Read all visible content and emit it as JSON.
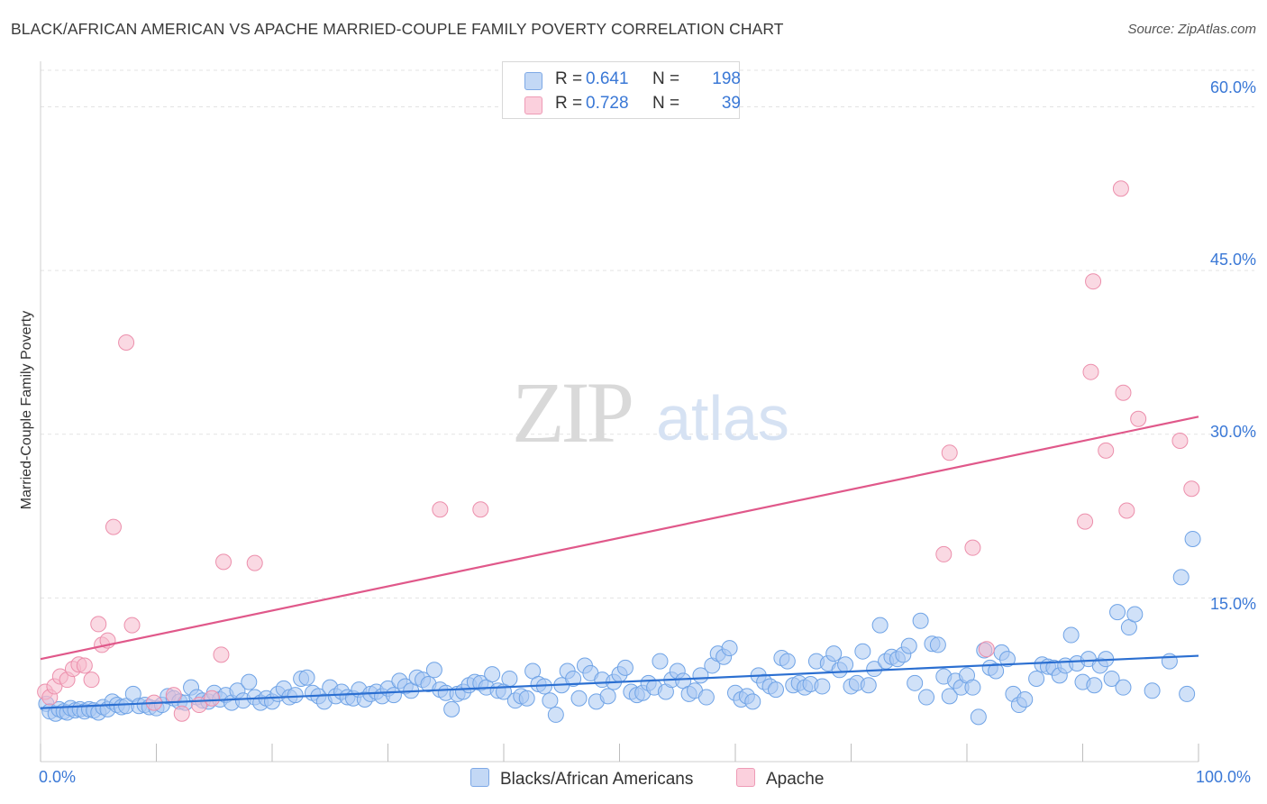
{
  "title": "BLACK/AFRICAN AMERICAN VS APACHE MARRIED-COUPLE FAMILY POVERTY CORRELATION CHART",
  "source": "Source: ZipAtlas.com",
  "watermark": {
    "zip": "ZIP",
    "atlas": "atlas"
  },
  "legend": {
    "rows": [
      {
        "r_label": "R =",
        "r_value": "0.641",
        "n_label": "N =",
        "n_value": "198",
        "color": "#a9c8f2"
      },
      {
        "r_label": "R =",
        "r_value": "0.728",
        "n_label": "N =",
        "n_value": "39",
        "color": "#f6b9cc"
      }
    ]
  },
  "bottom_legend": [
    {
      "label": "Blacks/African Americans",
      "color": "#a9c8f2"
    },
    {
      "label": "Apache",
      "color": "#f6b9cc"
    }
  ],
  "chart_data": {
    "type": "scatter",
    "xlabel": "",
    "ylabel": "Married-Couple Family Poverty",
    "xlim": [
      0,
      100
    ],
    "ylim": [
      0,
      64
    ],
    "x_tick_labels": [
      "0.0%",
      "100.0%"
    ],
    "y_ticks": [
      15,
      30,
      45,
      60
    ],
    "y_tick_labels": [
      "15.0%",
      "30.0%",
      "45.0%",
      "60.0%"
    ],
    "grid": true,
    "series": [
      {
        "name": "Blacks/African Americans",
        "color": "#6fa3e6",
        "fill": "#a9c8f2",
        "line_color": "#2b6fd1",
        "trend": [
          [
            0,
            4.9
          ],
          [
            100,
            9.7
          ]
        ],
        "points": [
          [
            0.5,
            5.3
          ],
          [
            0.8,
            4.6
          ],
          [
            1.3,
            4.4
          ],
          [
            1.6,
            4.8
          ],
          [
            2.0,
            4.6
          ],
          [
            2.3,
            4.5
          ],
          [
            2.6,
            4.9
          ],
          [
            3.0,
            4.7
          ],
          [
            3.4,
            4.8
          ],
          [
            3.8,
            4.6
          ],
          [
            4.2,
            4.8
          ],
          [
            4.6,
            4.7
          ],
          [
            5.0,
            4.5
          ],
          [
            5.4,
            5.0
          ],
          [
            5.8,
            4.8
          ],
          [
            6.2,
            5.5
          ],
          [
            6.6,
            5.2
          ],
          [
            7.0,
            5.0
          ],
          [
            7.4,
            5.1
          ],
          [
            8.0,
            6.2
          ],
          [
            8.5,
            5.1
          ],
          [
            9.0,
            5.2
          ],
          [
            9.4,
            5.0
          ],
          [
            10.0,
            4.9
          ],
          [
            10.5,
            5.2
          ],
          [
            11.0,
            6.0
          ],
          [
            11.5,
            5.8
          ],
          [
            12.0,
            5.5
          ],
          [
            12.5,
            5.4
          ],
          [
            13.0,
            6.8
          ],
          [
            13.5,
            5.9
          ],
          [
            14.0,
            5.6
          ],
          [
            14.5,
            5.5
          ],
          [
            15.0,
            6.3
          ],
          [
            15.5,
            5.7
          ],
          [
            16.0,
            6.1
          ],
          [
            16.5,
            5.4
          ],
          [
            17.0,
            6.5
          ],
          [
            17.5,
            5.6
          ],
          [
            18.0,
            7.3
          ],
          [
            18.5,
            5.9
          ],
          [
            19.0,
            5.4
          ],
          [
            19.5,
            5.8
          ],
          [
            20.0,
            5.5
          ],
          [
            20.5,
            6.2
          ],
          [
            21.0,
            6.7
          ],
          [
            21.5,
            5.9
          ],
          [
            22.0,
            6.1
          ],
          [
            22.5,
            7.6
          ],
          [
            23.0,
            7.7
          ],
          [
            23.5,
            6.3
          ],
          [
            24.0,
            6.0
          ],
          [
            24.5,
            5.5
          ],
          [
            25.0,
            6.8
          ],
          [
            25.5,
            6.0
          ],
          [
            26.0,
            6.4
          ],
          [
            26.5,
            5.9
          ],
          [
            27.0,
            5.8
          ],
          [
            27.5,
            6.6
          ],
          [
            28.0,
            5.7
          ],
          [
            28.5,
            6.2
          ],
          [
            29.0,
            6.4
          ],
          [
            29.5,
            6.0
          ],
          [
            30.0,
            6.7
          ],
          [
            30.5,
            6.1
          ],
          [
            31.0,
            7.4
          ],
          [
            31.5,
            6.9
          ],
          [
            32.0,
            6.5
          ],
          [
            32.5,
            7.7
          ],
          [
            33.0,
            7.5
          ],
          [
            33.5,
            7.1
          ],
          [
            34.0,
            8.4
          ],
          [
            34.5,
            6.6
          ],
          [
            35.0,
            6.3
          ],
          [
            35.5,
            4.8
          ],
          [
            36.0,
            6.2
          ],
          [
            36.5,
            6.4
          ],
          [
            37.0,
            7.0
          ],
          [
            37.5,
            7.3
          ],
          [
            38.0,
            7.2
          ],
          [
            38.5,
            6.8
          ],
          [
            39.0,
            8.0
          ],
          [
            39.5,
            6.5
          ],
          [
            40.0,
            6.4
          ],
          [
            40.5,
            7.6
          ],
          [
            41.0,
            5.6
          ],
          [
            41.5,
            6.0
          ],
          [
            42.0,
            5.8
          ],
          [
            42.5,
            8.3
          ],
          [
            43.0,
            7.1
          ],
          [
            43.5,
            6.9
          ],
          [
            44.0,
            5.6
          ],
          [
            44.5,
            4.3
          ],
          [
            45.0,
            7.0
          ],
          [
            45.5,
            8.3
          ],
          [
            46.0,
            7.6
          ],
          [
            46.5,
            5.8
          ],
          [
            47.0,
            8.8
          ],
          [
            47.5,
            8.1
          ],
          [
            48.0,
            5.5
          ],
          [
            48.5,
            7.5
          ],
          [
            49.0,
            6.0
          ],
          [
            49.5,
            7.3
          ],
          [
            50.0,
            8.0
          ],
          [
            50.5,
            8.6
          ],
          [
            51.0,
            6.4
          ],
          [
            51.5,
            6.1
          ],
          [
            52.0,
            6.3
          ],
          [
            52.5,
            7.2
          ],
          [
            53.0,
            6.8
          ],
          [
            53.5,
            9.2
          ],
          [
            54.0,
            6.4
          ],
          [
            54.5,
            7.5
          ],
          [
            55.0,
            8.3
          ],
          [
            55.5,
            7.4
          ],
          [
            56.0,
            6.2
          ],
          [
            56.5,
            6.5
          ],
          [
            57.0,
            7.9
          ],
          [
            57.5,
            5.9
          ],
          [
            58.0,
            8.8
          ],
          [
            58.5,
            9.9
          ],
          [
            59.0,
            9.6
          ],
          [
            59.5,
            10.4
          ],
          [
            60.0,
            6.3
          ],
          [
            60.5,
            5.7
          ],
          [
            61.0,
            6.0
          ],
          [
            61.5,
            5.5
          ],
          [
            62.0,
            7.9
          ],
          [
            62.5,
            7.3
          ],
          [
            63.0,
            6.9
          ],
          [
            63.5,
            6.6
          ],
          [
            64.0,
            9.5
          ],
          [
            64.5,
            9.2
          ],
          [
            65.0,
            7.0
          ],
          [
            65.5,
            7.2
          ],
          [
            66.0,
            6.8
          ],
          [
            66.5,
            7.1
          ],
          [
            67.0,
            9.2
          ],
          [
            67.5,
            6.9
          ],
          [
            68.0,
            9.0
          ],
          [
            68.5,
            9.9
          ],
          [
            69.0,
            8.4
          ],
          [
            69.5,
            8.9
          ],
          [
            70.0,
            6.9
          ],
          [
            70.5,
            7.2
          ],
          [
            71.0,
            10.1
          ],
          [
            71.5,
            7.0
          ],
          [
            72.0,
            8.5
          ],
          [
            72.5,
            12.5
          ],
          [
            73.0,
            9.2
          ],
          [
            73.5,
            9.6
          ],
          [
            74.0,
            9.4
          ],
          [
            74.5,
            9.8
          ],
          [
            75.0,
            10.6
          ],
          [
            75.5,
            7.2
          ],
          [
            76.0,
            12.9
          ],
          [
            76.5,
            5.9
          ],
          [
            77.0,
            10.8
          ],
          [
            77.5,
            10.7
          ],
          [
            78.0,
            7.8
          ],
          [
            78.5,
            6.0
          ],
          [
            79.0,
            7.4
          ],
          [
            79.5,
            6.8
          ],
          [
            80.0,
            7.9
          ],
          [
            80.5,
            6.8
          ],
          [
            81.0,
            4.1
          ],
          [
            81.5,
            10.2
          ],
          [
            82.0,
            8.6
          ],
          [
            82.5,
            8.3
          ],
          [
            83.0,
            10.0
          ],
          [
            83.5,
            9.4
          ],
          [
            84.0,
            6.2
          ],
          [
            84.5,
            5.2
          ],
          [
            85.0,
            5.7
          ],
          [
            86.0,
            7.6
          ],
          [
            86.5,
            8.9
          ],
          [
            87.0,
            8.7
          ],
          [
            87.5,
            8.6
          ],
          [
            88.0,
            7.9
          ],
          [
            88.5,
            8.8
          ],
          [
            89.0,
            11.6
          ],
          [
            89.5,
            9.0
          ],
          [
            90.0,
            7.3
          ],
          [
            90.5,
            9.4
          ],
          [
            91.0,
            7.0
          ],
          [
            91.5,
            8.8
          ],
          [
            92.0,
            9.4
          ],
          [
            92.5,
            7.6
          ],
          [
            93.0,
            13.7
          ],
          [
            93.5,
            6.8
          ],
          [
            94.0,
            12.3
          ],
          [
            94.5,
            13.5
          ],
          [
            96.0,
            6.5
          ],
          [
            97.5,
            9.2
          ],
          [
            98.5,
            16.9
          ],
          [
            99.0,
            6.2
          ],
          [
            99.5,
            20.4
          ]
        ]
      },
      {
        "name": "Apache",
        "color": "#ec8fac",
        "fill": "#f6b9cc",
        "line_color": "#e0588a",
        "trend": [
          [
            0,
            9.4
          ],
          [
            100,
            31.6
          ]
        ],
        "points": [
          [
            0.4,
            6.4
          ],
          [
            0.8,
            5.9
          ],
          [
            1.2,
            6.9
          ],
          [
            1.7,
            7.8
          ],
          [
            2.3,
            7.5
          ],
          [
            2.8,
            8.5
          ],
          [
            3.3,
            8.9
          ],
          [
            3.8,
            8.8
          ],
          [
            4.4,
            7.5
          ],
          [
            5.0,
            12.6
          ],
          [
            5.3,
            10.7
          ],
          [
            5.8,
            11.1
          ],
          [
            6.3,
            21.5
          ],
          [
            7.4,
            38.4
          ],
          [
            7.9,
            12.5
          ],
          [
            9.8,
            5.4
          ],
          [
            11.5,
            6.1
          ],
          [
            12.2,
            4.4
          ],
          [
            13.7,
            5.2
          ],
          [
            14.8,
            5.8
          ],
          [
            15.6,
            9.8
          ],
          [
            15.8,
            18.3
          ],
          [
            18.5,
            18.2
          ],
          [
            34.5,
            23.1
          ],
          [
            38.0,
            23.1
          ],
          [
            78.5,
            28.3
          ],
          [
            78.0,
            19.0
          ],
          [
            80.5,
            19.6
          ],
          [
            81.7,
            10.3
          ],
          [
            90.2,
            22.0
          ],
          [
            90.7,
            35.7
          ],
          [
            90.9,
            44.0
          ],
          [
            92.0,
            28.5
          ],
          [
            93.3,
            52.5
          ],
          [
            93.5,
            33.8
          ],
          [
            93.8,
            23.0
          ],
          [
            94.8,
            31.4
          ],
          [
            98.4,
            29.4
          ],
          [
            99.4,
            25.0
          ]
        ]
      }
    ]
  }
}
